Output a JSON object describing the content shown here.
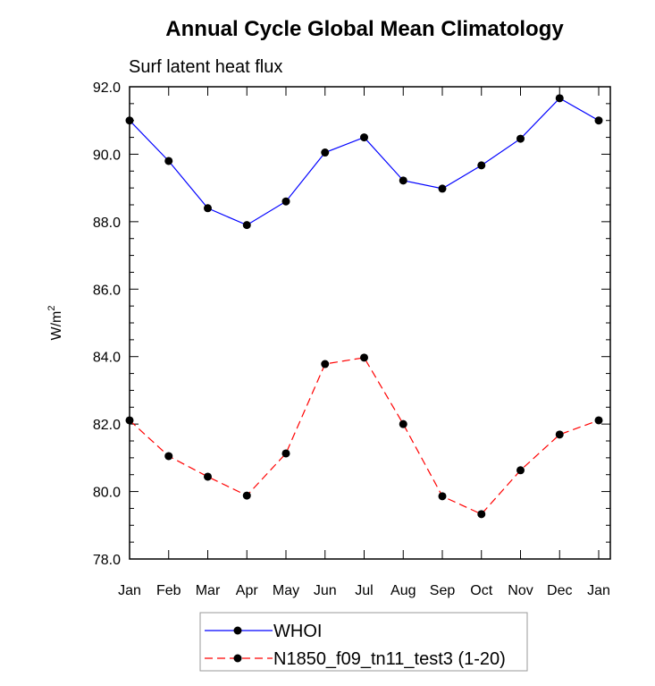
{
  "chart_data": {
    "type": "line",
    "title": "Annual Cycle Global Mean Climatology",
    "subtitle": "Surf latent heat flux",
    "ylabel": "W/m",
    "ylabel_superscript": "2",
    "xlabel": "",
    "categories": [
      "Jan",
      "Feb",
      "Mar",
      "Apr",
      "May",
      "Jun",
      "Jul",
      "Aug",
      "Sep",
      "Oct",
      "Nov",
      "Dec",
      "Jan"
    ],
    "ylim": [
      78,
      92
    ],
    "yticks": [
      "78.0",
      "80.0",
      "82.0",
      "84.0",
      "86.0",
      "88.0",
      "90.0",
      "92.0"
    ],
    "grid": false,
    "legend_position": "bottom-center",
    "series": [
      {
        "name": "WHOI",
        "color": "#0000ff",
        "dash": "solid",
        "values": [
          91.0,
          89.8,
          88.4,
          87.9,
          88.6,
          90.05,
          90.5,
          89.22,
          88.98,
          89.67,
          90.46,
          91.66,
          91.0
        ]
      },
      {
        "name": "N1850_f09_tn11_test3 (1-20)",
        "color": "#ff0000",
        "dash": "dashed",
        "values": [
          82.11,
          81.05,
          80.44,
          79.88,
          81.13,
          83.78,
          83.97,
          82.0,
          79.86,
          79.33,
          80.63,
          81.69,
          82.11
        ]
      }
    ]
  }
}
